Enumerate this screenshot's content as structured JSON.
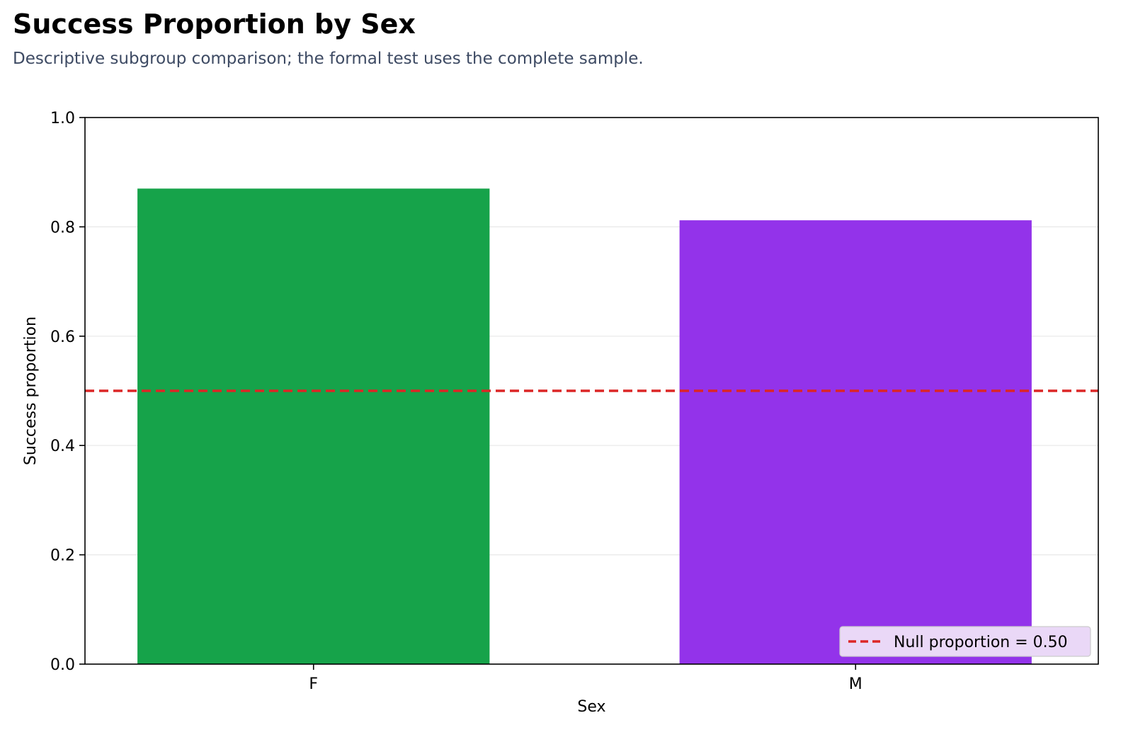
{
  "colors": {
    "F": "#16a34a",
    "M": "#9333ea",
    "null_line": "#dc2626",
    "subtitle": "#3d4a63",
    "legend_background": "#ead8f7"
  },
  "chart_data": {
    "type": "bar",
    "title": "Success Proportion by Sex",
    "subtitle": "Descriptive subgroup comparison; the formal test uses the complete sample.",
    "xlabel": "Sex",
    "ylabel": "Success proportion",
    "categories": [
      "F",
      "M"
    ],
    "values": [
      0.87,
      0.812
    ],
    "ylim": [
      0,
      1.0
    ],
    "yticks": [
      "0.0",
      "0.2",
      "0.4",
      "0.6",
      "0.8",
      "1.0"
    ],
    "grid": "horizontal",
    "reference_line": {
      "value": 0.5,
      "style": "dashed",
      "label": "Null proportion = 0.50"
    },
    "legend_position": "lower-right"
  }
}
